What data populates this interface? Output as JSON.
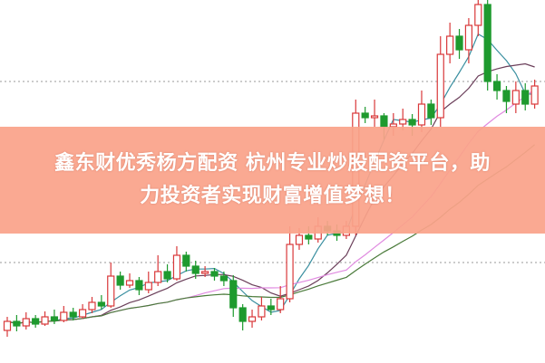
{
  "banner": {
    "line1": "鑫东财优秀杨方配资 杭州专业炒股配资平台，助",
    "line2": "力投资者实现财富增值梦想！",
    "background": "#faa38a",
    "text_color": "#ffffff"
  },
  "chart_data": {
    "type": "candlestick",
    "fields": [
      "open",
      "close",
      "high",
      "low"
    ],
    "candles": [
      [
        35,
        45,
        50,
        28
      ],
      [
        45,
        40,
        52,
        34
      ],
      [
        40,
        48,
        55,
        36
      ],
      [
        48,
        42,
        52,
        38
      ],
      [
        42,
        50,
        56,
        40
      ],
      [
        50,
        46,
        58,
        42
      ],
      [
        46,
        55,
        62,
        44
      ],
      [
        55,
        50,
        60,
        46
      ],
      [
        50,
        58,
        64,
        48
      ],
      [
        58,
        66,
        72,
        54
      ],
      [
        66,
        62,
        74,
        58
      ],
      [
        62,
        95,
        110,
        60
      ],
      [
        95,
        85,
        100,
        80
      ],
      [
        85,
        90,
        98,
        82
      ],
      [
        90,
        80,
        94,
        74
      ],
      [
        80,
        88,
        100,
        76
      ],
      [
        88,
        100,
        118,
        84
      ],
      [
        100,
        92,
        108,
        88
      ],
      [
        92,
        118,
        128,
        90
      ],
      [
        118,
        106,
        122,
        100
      ],
      [
        106,
        98,
        112,
        92
      ],
      [
        98,
        100,
        106,
        94
      ],
      [
        100,
        95,
        104,
        90
      ],
      [
        95,
        90,
        100,
        84
      ],
      [
        90,
        60,
        96,
        50
      ],
      [
        60,
        45,
        64,
        35
      ],
      [
        45,
        50,
        58,
        38
      ],
      [
        50,
        62,
        72,
        46
      ],
      [
        62,
        58,
        70,
        52
      ],
      [
        58,
        70,
        84,
        54
      ],
      [
        70,
        130,
        150,
        66
      ],
      [
        130,
        140,
        148,
        124
      ],
      [
        140,
        136,
        150,
        130
      ],
      [
        136,
        150,
        160,
        132
      ],
      [
        150,
        145,
        156,
        140
      ],
      [
        145,
        140,
        152,
        134
      ],
      [
        140,
        150,
        156,
        136
      ],
      [
        150,
        275,
        290,
        140
      ],
      [
        275,
        270,
        282,
        264
      ],
      [
        270,
        272,
        290,
        260
      ],
      [
        272,
        260,
        275,
        246
      ],
      [
        260,
        263,
        275,
        250
      ],
      [
        263,
        268,
        280,
        256
      ],
      [
        268,
        262,
        274,
        250
      ],
      [
        262,
        285,
        300,
        254
      ],
      [
        285,
        270,
        290,
        262
      ],
      [
        270,
        340,
        360,
        260
      ],
      [
        340,
        360,
        375,
        330
      ],
      [
        360,
        345,
        368,
        335
      ],
      [
        345,
        372,
        380,
        330
      ],
      [
        372,
        395,
        400,
        360
      ],
      [
        395,
        310,
        400,
        300
      ],
      [
        310,
        300,
        318,
        290
      ],
      [
        300,
        288,
        305,
        275
      ],
      [
        285,
        300,
        310,
        275
      ],
      [
        300,
        285,
        308,
        278
      ],
      [
        285,
        305,
        312,
        280
      ]
    ],
    "gridlines": [
      110,
      310
    ],
    "moving_averages": [
      {
        "period": 5,
        "color": "#3a8fa0"
      },
      {
        "period": 10,
        "color": "#6b3f5a"
      },
      {
        "period": 20,
        "color": "#e08ae0"
      },
      {
        "period": 30,
        "color": "#4a7a3a"
      }
    ],
    "up_color": "#d9383a",
    "down_color": "#1e9a2e"
  }
}
